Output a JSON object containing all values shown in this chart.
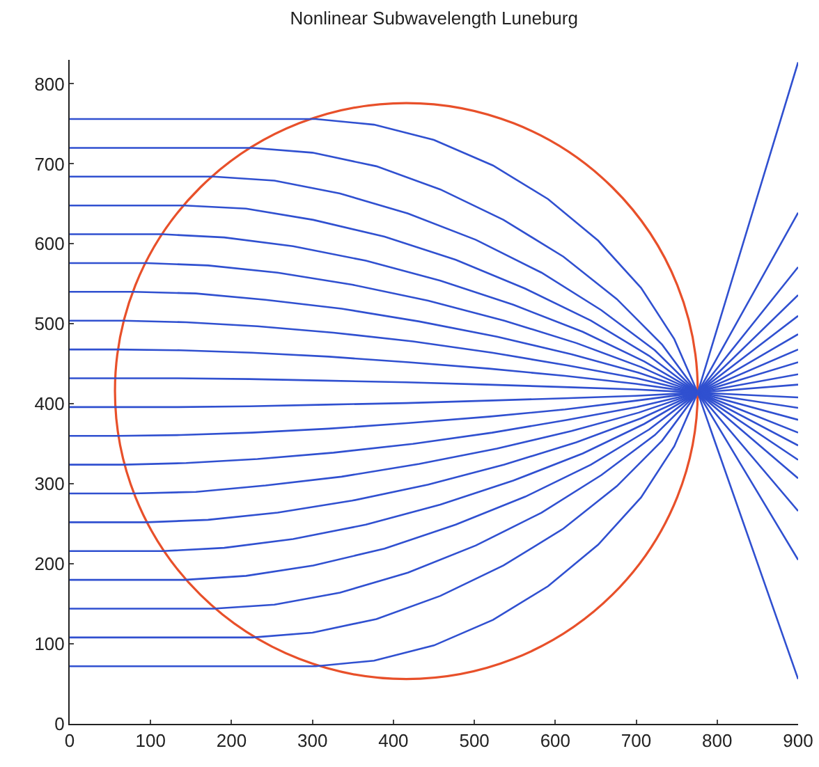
{
  "chart_data": {
    "type": "line",
    "title": "Nonlinear Subwavelength Luneburg",
    "xlim": [
      0,
      900
    ],
    "xticks": [
      0,
      100,
      200,
      300,
      400,
      500,
      600,
      700,
      800,
      900
    ],
    "ylim": [
      0,
      830
    ],
    "yticks": [
      0,
      100,
      200,
      300,
      400,
      500,
      600,
      700,
      800
    ],
    "grid": false,
    "marker": "none",
    "line_style": "solid",
    "series": [
      {
        "color": "#3050d0",
        "x": [
          0,
          304,
          376,
          450,
          523,
          591,
          653,
          706,
          747,
          776,
          900
        ],
        "values": [
          756,
          756,
          749,
          730,
          698,
          656,
          604,
          545,
          481,
          414,
          56
        ]
      },
      {
        "color": "#3050d0",
        "x": [
          0,
          226,
          300,
          379,
          458,
          536,
          610,
          676,
          732,
          776,
          900
        ],
        "values": [
          720,
          720,
          714,
          697,
          668,
          630,
          584,
          531,
          474,
          414,
          205
        ]
      },
      {
        "color": "#3050d0",
        "x": [
          0,
          178,
          253,
          334,
          418,
          502,
          583,
          657,
          723,
          776,
          900
        ],
        "values": [
          684,
          684,
          679,
          663,
          638,
          605,
          564,
          517,
          467,
          414,
          266
        ]
      },
      {
        "color": "#3050d0",
        "x": [
          0,
          142,
          218,
          301,
          389,
          477,
          563,
          644,
          716,
          776,
          900
        ],
        "values": [
          648,
          648,
          644,
          630,
          609,
          580,
          544,
          504,
          460,
          414,
          307
        ]
      },
      {
        "color": "#3050d0",
        "x": [
          0,
          115,
          191,
          276,
          366,
          458,
          548,
          634,
          710,
          776,
          900
        ],
        "values": [
          612,
          612,
          608,
          597,
          579,
          554,
          524,
          490,
          453,
          414,
          330
        ]
      },
      {
        "color": "#3050d0",
        "x": [
          0,
          95,
          171,
          257,
          349,
          443,
          537,
          626,
          706,
          776,
          900
        ],
        "values": [
          576,
          576,
          573,
          564,
          549,
          529,
          504,
          476,
          446,
          414,
          348
        ]
      },
      {
        "color": "#3050d0",
        "x": [
          0,
          79,
          156,
          242,
          336,
          432,
          528,
          620,
          703,
          776,
          900
        ],
        "values": [
          540,
          540,
          538,
          530,
          519,
          503,
          484,
          462,
          439,
          414,
          364
        ]
      },
      {
        "color": "#3050d0",
        "x": [
          0,
          67,
          144,
          232,
          326,
          424,
          522,
          615,
          701,
          776,
          900
        ],
        "values": [
          504,
          504,
          502,
          497,
          489,
          478,
          464,
          448,
          432,
          414,
          380
        ]
      },
      {
        "color": "#3050d0",
        "x": [
          0,
          60,
          137,
          225,
          320,
          419,
          518,
          612,
          700,
          776,
          900
        ],
        "values": [
          468,
          468,
          467,
          464,
          459,
          452,
          444,
          435,
          425,
          414,
          395
        ]
      },
      {
        "color": "#3050d0",
        "x": [
          0,
          57,
          134,
          222,
          317,
          416,
          516,
          611,
          699,
          776,
          900
        ],
        "values": [
          432,
          432,
          432,
          431,
          429,
          427,
          424,
          421,
          418,
          414,
          408
        ]
      },
      {
        "color": "#3050d0",
        "x": [
          0,
          57,
          134,
          222,
          317,
          416,
          516,
          611,
          699,
          776,
          900
        ],
        "values": [
          396,
          396,
          396,
          397,
          399,
          401,
          404,
          407,
          410,
          414,
          424
        ]
      },
      {
        "color": "#3050d0",
        "x": [
          0,
          60,
          137,
          225,
          320,
          419,
          518,
          612,
          700,
          776,
          900
        ],
        "values": [
          360,
          360,
          361,
          364,
          369,
          376,
          384,
          393,
          404,
          414,
          437
        ]
      },
      {
        "color": "#3050d0",
        "x": [
          0,
          67,
          144,
          232,
          326,
          424,
          522,
          615,
          701,
          776,
          900
        ],
        "values": [
          324,
          324,
          326,
          331,
          339,
          350,
          364,
          380,
          396,
          414,
          452
        ]
      },
      {
        "color": "#3050d0",
        "x": [
          0,
          79,
          156,
          242,
          336,
          432,
          528,
          620,
          703,
          776,
          900
        ],
        "values": [
          288,
          288,
          290,
          298,
          309,
          325,
          344,
          366,
          389,
          414,
          468
        ]
      },
      {
        "color": "#3050d0",
        "x": [
          0,
          95,
          171,
          257,
          349,
          443,
          537,
          626,
          706,
          776,
          900
        ],
        "values": [
          252,
          252,
          255,
          264,
          279,
          299,
          324,
          352,
          382,
          414,
          487
        ]
      },
      {
        "color": "#3050d0",
        "x": [
          0,
          115,
          191,
          276,
          366,
          458,
          548,
          634,
          710,
          776,
          900
        ],
        "values": [
          216,
          216,
          220,
          231,
          249,
          274,
          304,
          338,
          375,
          414,
          510
        ]
      },
      {
        "color": "#3050d0",
        "x": [
          0,
          142,
          218,
          301,
          389,
          477,
          563,
          644,
          716,
          776,
          900
        ],
        "values": [
          180,
          180,
          185,
          198,
          219,
          249,
          284,
          324,
          368,
          414,
          536
        ]
      },
      {
        "color": "#3050d0",
        "x": [
          0,
          178,
          253,
          334,
          418,
          502,
          583,
          657,
          723,
          776,
          900
        ],
        "values": [
          144,
          144,
          149,
          164,
          189,
          223,
          264,
          311,
          361,
          414,
          571
        ]
      },
      {
        "color": "#3050d0",
        "x": [
          0,
          226,
          300,
          379,
          458,
          536,
          610,
          676,
          732,
          776,
          900
        ],
        "values": [
          108,
          108,
          114,
          131,
          160,
          198,
          244,
          297,
          354,
          414,
          639
        ]
      },
      {
        "color": "#3050d0",
        "x": [
          0,
          304,
          376,
          450,
          523,
          591,
          653,
          706,
          747,
          776,
          900
        ],
        "values": [
          72,
          72,
          79,
          98,
          130,
          172,
          224,
          283,
          347,
          414,
          827
        ]
      }
    ]
  }
}
